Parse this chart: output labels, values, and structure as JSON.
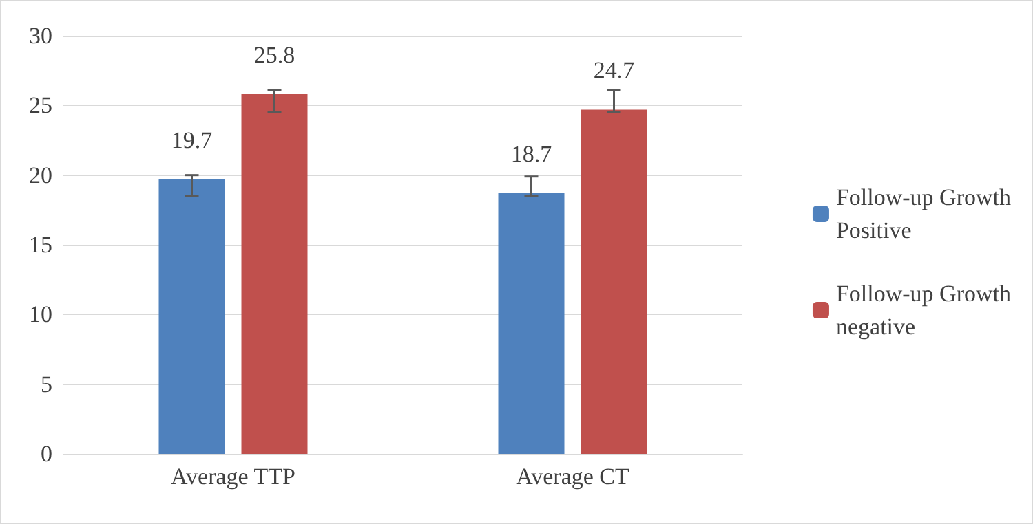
{
  "chart_data": {
    "type": "bar",
    "categories": [
      "Average TTP",
      "Average CT"
    ],
    "series": [
      {
        "name": "Follow-up Growth Positive",
        "color": "#4f81bd",
        "values": [
          19.7,
          18.7
        ],
        "errors": [
          [
            18.5,
            20.0
          ],
          [
            18.5,
            19.9
          ]
        ]
      },
      {
        "name": "Follow-up Growth negative",
        "color": "#c0504d",
        "values": [
          25.8,
          24.7
        ],
        "errors": [
          [
            24.5,
            26.1
          ],
          [
            24.5,
            26.1
          ]
        ]
      }
    ],
    "ylim": [
      0,
      30
    ],
    "yticks": [
      0,
      5,
      10,
      15,
      20,
      25,
      30
    ],
    "grid": "y",
    "legend": "right",
    "data_labels": true
  }
}
